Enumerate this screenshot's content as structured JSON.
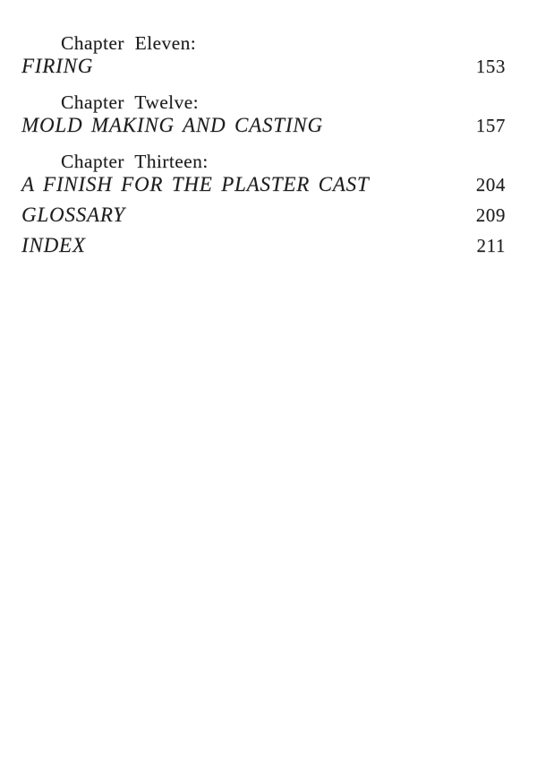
{
  "colors": {
    "paper": "#ffffff",
    "ink": "#1d1d1d"
  },
  "toc": {
    "entries": [
      {
        "chapter_label": "Chapter Eleven:",
        "title": "FIRING",
        "page": "153"
      },
      {
        "chapter_label": "Chapter Twelve:",
        "title": "MOLD MAKING AND CASTING",
        "page": "157"
      },
      {
        "chapter_label": "Chapter Thirteen:",
        "title": "A FINISH FOR THE PLASTER CAST",
        "page": "204"
      },
      {
        "title": "GLOSSARY",
        "page": "209"
      },
      {
        "title": "INDEX",
        "page": "211"
      }
    ]
  }
}
